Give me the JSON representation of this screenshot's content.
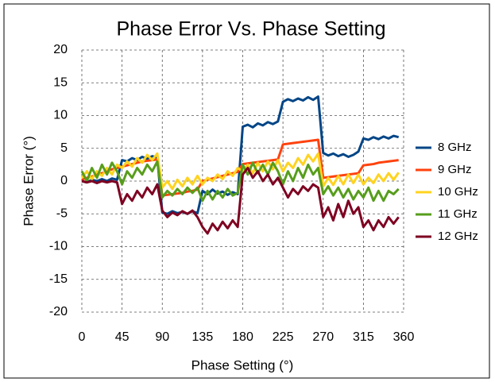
{
  "chart_data": {
    "type": "line",
    "title": "Phase Error Vs. Phase Setting",
    "x_label": "Phase Setting (°)",
    "y_label": "Phase Error (°)",
    "x": [
      0,
      5.625,
      11.25,
      16.875,
      22.5,
      28.125,
      33.75,
      39.375,
      45,
      50.625,
      56.25,
      61.875,
      67.5,
      73.125,
      78.75,
      84.375,
      90,
      95.625,
      101.25,
      106.875,
      112.5,
      118.125,
      123.75,
      129.375,
      135,
      140.625,
      146.25,
      151.875,
      157.5,
      163.125,
      168.75,
      174.375,
      180,
      185.625,
      191.25,
      196.875,
      202.5,
      208.125,
      213.75,
      219.375,
      225,
      230.625,
      236.25,
      241.875,
      247.5,
      253.125,
      258.75,
      264.375,
      270,
      275.625,
      281.25,
      286.875,
      292.5,
      298.125,
      303.75,
      309.375,
      315,
      320.625,
      326.25,
      331.875,
      337.5,
      343.125,
      348.75,
      354.375
    ],
    "series": [
      {
        "name": "8 GHz",
        "color": "#004586",
        "values": [
          0,
          -0.2,
          0.2,
          0,
          0.3,
          0,
          0.4,
          0.2,
          3.2,
          3.0,
          3.5,
          3.2,
          3.7,
          3.4,
          3.8,
          3.6,
          -4.8,
          -5,
          -4.6,
          -4.9,
          -4.7,
          -5,
          -4.6,
          -4.9,
          -1.5,
          -2,
          -1.3,
          -1.9,
          -1.6,
          -2.1,
          -1.7,
          -2,
          8.3,
          8.6,
          8.2,
          8.8,
          8.5,
          9.0,
          8.7,
          9.1,
          12.1,
          12.5,
          12.2,
          12.6,
          12.3,
          12.8,
          12.4,
          12.9,
          4.3,
          3.9,
          4.2,
          3.8,
          4.1,
          3.7,
          4.0,
          4.5,
          6.5,
          6.3,
          6.7,
          6.4,
          6.8,
          6.5,
          6.9,
          6.7
        ]
      },
      {
        "name": "9 GHz",
        "color": "#ff420e",
        "values": [
          0.2,
          0.5,
          0.7,
          1,
          1.2,
          1.5,
          1.8,
          2,
          2.2,
          2.4,
          2.6,
          2.8,
          3,
          3.1,
          3.2,
          3.3,
          -2.2,
          -2.1,
          -2,
          -1.9,
          -1.8,
          -1.6,
          -1.5,
          -1.3,
          0,
          0.2,
          0.4,
          0.6,
          0.8,
          1,
          1.2,
          1.4,
          2.6,
          2.7,
          2.8,
          2.9,
          3,
          3.1,
          3.2,
          3.3,
          5.6,
          5.7,
          5.8,
          5.9,
          6,
          6.1,
          6.2,
          6.3,
          0.5,
          0.6,
          0.7,
          0.8,
          0.9,
          1,
          1.1,
          1.2,
          2.4,
          2.5,
          2.6,
          2.8,
          2.9,
          3,
          3.1,
          3.2
        ]
      },
      {
        "name": "10 GHz",
        "color": "#ffd320",
        "values": [
          0.5,
          1.5,
          0.3,
          1.5,
          0.8,
          2,
          1,
          2.5,
          2,
          3,
          2.2,
          3.5,
          2.8,
          4,
          3.2,
          4.2,
          -1,
          0,
          -1.2,
          0.2,
          -0.8,
          0.5,
          -0.5,
          0.8,
          -0.5,
          0.5,
          0,
          1,
          0.3,
          1.5,
          0.8,
          2,
          1.5,
          2.5,
          1.2,
          2.8,
          1.5,
          3,
          1.8,
          3.2,
          1.5,
          2.8,
          2,
          3.5,
          2.5,
          4,
          3,
          4.2,
          -0.8,
          0.5,
          -0.6,
          0.8,
          -0.5,
          1,
          -0.3,
          1,
          -0.5,
          0.5,
          -0.3,
          1,
          0,
          1.2,
          0.2,
          1.3
        ]
      },
      {
        "name": "11 GHz",
        "color": "#579d1c",
        "values": [
          1.5,
          0,
          2,
          0.5,
          2.5,
          1,
          2.8,
          1.5,
          -0.5,
          1.5,
          0.5,
          2,
          1,
          2.5,
          1.5,
          3,
          -2.5,
          -1.5,
          -2.2,
          -1.2,
          -2,
          -1,
          -1.8,
          -1,
          -3,
          -1.5,
          -2.8,
          -1.5,
          -2.5,
          -1.2,
          -2.2,
          -1.8,
          2.5,
          1,
          2.8,
          1.2,
          2.5,
          1,
          2.8,
          1.5,
          -0.5,
          1.5,
          0,
          2,
          0.5,
          2.5,
          1,
          2,
          -2,
          -0.8,
          -2.2,
          -1,
          -2.5,
          -1.2,
          -2.8,
          -1.5,
          -2.5,
          -1,
          -3,
          -1.5,
          -3,
          -1.5,
          -2,
          -1.2
        ]
      },
      {
        "name": "12 GHz",
        "color": "#7e0021",
        "values": [
          0,
          -0.2,
          0,
          -0.3,
          0,
          -0.2,
          0,
          -0.2,
          -3.5,
          -2,
          -3,
          -1.5,
          -2.5,
          -1,
          -2,
          -0.5,
          -4.5,
          -5.5,
          -4.8,
          -5.2,
          -4.6,
          -5,
          -4.5,
          -5.5,
          -7,
          -8,
          -6.5,
          -7.5,
          -6.2,
          -7.2,
          -6,
          -7,
          1,
          2,
          0.5,
          1.5,
          0,
          1,
          -0.5,
          0.5,
          -1,
          -2.5,
          -1.2,
          -2,
          -0.8,
          -1.5,
          -0.5,
          -1,
          -5.5,
          -4,
          -6,
          -3.5,
          -5.5,
          -3,
          -5,
          -4,
          -7,
          -6,
          -7.5,
          -6,
          -7,
          -5.5,
          -6.5,
          -5.5
        ]
      }
    ],
    "xlim": [
      0,
      360
    ],
    "xticks": [
      0,
      45,
      90,
      135,
      180,
      225,
      270,
      315,
      360
    ],
    "ylim": [
      -20,
      20
    ],
    "yticks": [
      -20,
      -15,
      -10,
      -5,
      0,
      5,
      10,
      15,
      20
    ],
    "grid": true,
    "legend": "right"
  }
}
